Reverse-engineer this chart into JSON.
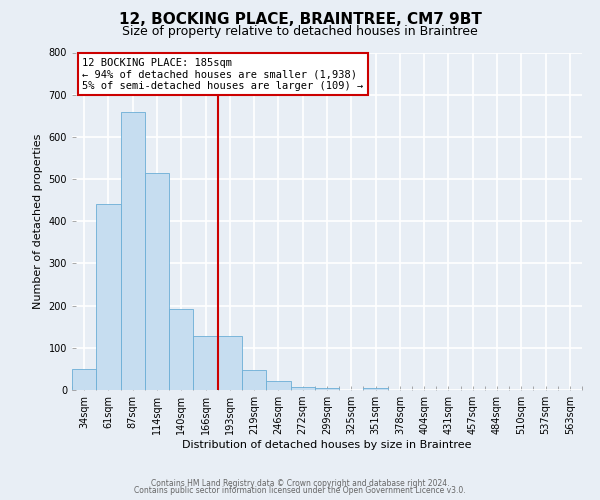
{
  "title": "12, BOCKING PLACE, BRAINTREE, CM7 9BT",
  "subtitle": "Size of property relative to detached houses in Braintree",
  "xlabel": "Distribution of detached houses by size in Braintree",
  "ylabel": "Number of detached properties",
  "bar_labels": [
    "34sqm",
    "61sqm",
    "87sqm",
    "114sqm",
    "140sqm",
    "166sqm",
    "193sqm",
    "219sqm",
    "246sqm",
    "272sqm",
    "299sqm",
    "325sqm",
    "351sqm",
    "378sqm",
    "404sqm",
    "431sqm",
    "457sqm",
    "484sqm",
    "510sqm",
    "537sqm",
    "563sqm"
  ],
  "bar_values": [
    50,
    440,
    660,
    515,
    193,
    127,
    127,
    48,
    22,
    8,
    5,
    0,
    5,
    0,
    0,
    0,
    0,
    0,
    0,
    0,
    0
  ],
  "bar_color": "#c6ddf0",
  "bar_edge_color": "#6baed6",
  "highlight_line_color": "#cc0000",
  "ylim": [
    0,
    800
  ],
  "yticks": [
    0,
    100,
    200,
    300,
    400,
    500,
    600,
    700,
    800
  ],
  "annotation_title": "12 BOCKING PLACE: 185sqm",
  "annotation_line1": "← 94% of detached houses are smaller (1,938)",
  "annotation_line2": "5% of semi-detached houses are larger (109) →",
  "annotation_box_color": "#ffffff",
  "annotation_box_edge": "#cc0000",
  "footer_line1": "Contains HM Land Registry data © Crown copyright and database right 2024.",
  "footer_line2": "Contains public sector information licensed under the Open Government Licence v3.0.",
  "background_color": "#e8eef5",
  "grid_color": "#ffffff",
  "title_fontsize": 11,
  "subtitle_fontsize": 9,
  "axis_label_fontsize": 8,
  "tick_fontsize": 7
}
